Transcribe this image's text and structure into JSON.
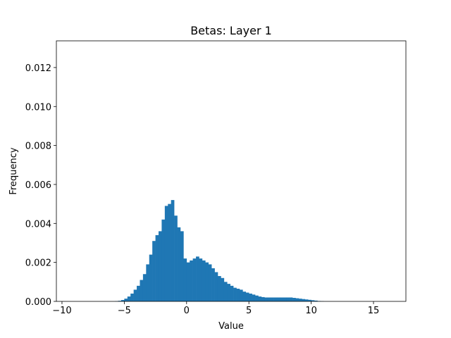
{
  "chart_data": {
    "type": "histogram",
    "title": "Betas: Layer 1",
    "x_label": "Value",
    "y_label": "Frequency",
    "color": "#1f77b4",
    "bins": [
      -6,
      -5.75,
      -5.5,
      -5.25,
      -5,
      -4.75,
      -4.5,
      -4.25,
      -4,
      -3.75,
      -3.5,
      -3.25,
      -3,
      -2.75,
      -2.5,
      -2.25,
      -2,
      -1.75,
      -1.5,
      -1.25,
      -1,
      -0.75,
      -0.5,
      -0.25,
      0,
      0.25,
      0.5,
      0.75,
      1,
      1.25,
      1.5,
      1.75,
      2,
      2.25,
      2.5,
      2.75,
      3,
      3.25,
      3.5,
      3.75,
      4,
      4.25,
      4.5,
      4.75,
      5,
      5.25,
      5.5,
      5.75,
      6,
      6.25,
      6.5,
      6.75,
      7,
      7.25,
      7.5,
      7.75,
      8,
      8.25,
      8.5,
      8.75,
      9,
      9.25,
      9.5,
      9.75,
      10,
      10.25,
      10.5,
      10.75,
      11
    ],
    "counts": [
      0,
      1e-05,
      3e-05,
      7e-05,
      0.00014,
      0.00025,
      0.0004,
      0.0006,
      0.0008,
      0.0011,
      0.0014,
      0.0019,
      0.0024,
      0.0031,
      0.0034,
      0.0036,
      0.0042,
      0.0049,
      0.005,
      0.0052,
      0.0044,
      0.0038,
      0.0036,
      0.0022,
      0.002,
      0.0021,
      0.0022,
      0.0023,
      0.0022,
      0.0021,
      0.002,
      0.0019,
      0.0017,
      0.0015,
      0.0013,
      0.0012,
      0.001,
      0.0009,
      0.0008,
      0.0007,
      0.00065,
      0.0006,
      0.0005,
      0.00045,
      0.0004,
      0.00035,
      0.0003,
      0.00025,
      0.00022,
      0.0002,
      0.0002,
      0.0002,
      0.0002,
      0.0002,
      0.0002,
      0.0002,
      0.0002,
      0.0002,
      0.00018,
      0.00016,
      0.00014,
      0.00012,
      0.0001,
      8e-05,
      6e-05,
      4e-05,
      2e-05,
      1e-05
    ],
    "xlim": [
      -10.45,
      17.6
    ],
    "ylim": [
      0,
      0.01337
    ],
    "xticks": [
      {
        "value": -10,
        "label": "−10"
      },
      {
        "value": -5,
        "label": "−5"
      },
      0,
      5,
      10,
      15
    ],
    "yticks": [
      {
        "value": 0,
        "label": "0.000"
      },
      {
        "value": 0.002,
        "label": "0.002"
      },
      {
        "value": 0.004,
        "label": "0.004"
      },
      {
        "value": 0.006,
        "label": "0.006"
      },
      {
        "value": 0.008,
        "label": "0.008"
      },
      {
        "value": 0.01,
        "label": "0.010"
      },
      {
        "value": 0.012,
        "label": "0.012"
      }
    ]
  }
}
